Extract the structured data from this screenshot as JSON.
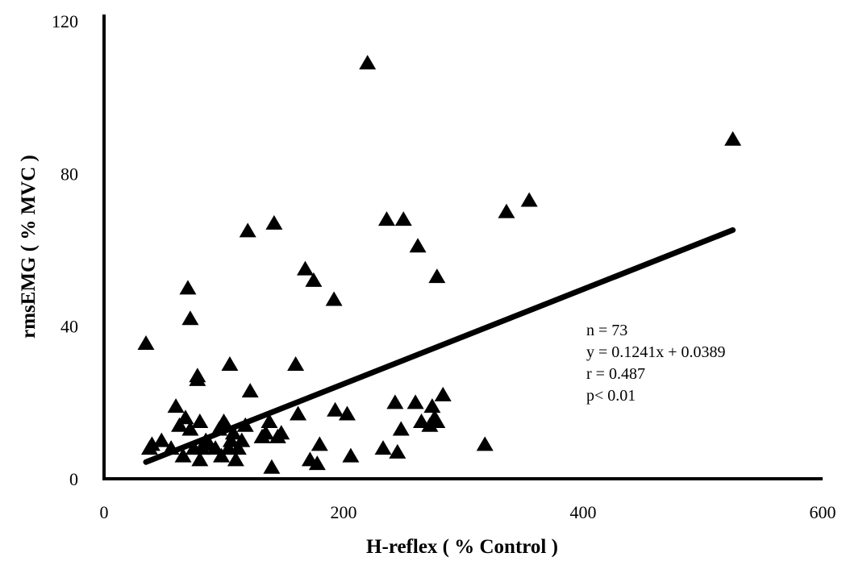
{
  "chart_data": {
    "type": "scatter",
    "xlabel": "H-reflex ( % Control )",
    "ylabel": "rmsEMG ( % MVC )",
    "xlim": [
      0,
      600
    ],
    "ylim": [
      0,
      120
    ],
    "x_ticks": [
      "0",
      "200",
      "400",
      "600"
    ],
    "y_ticks": [
      "0",
      "40",
      "80",
      "120"
    ],
    "grid": false,
    "legend": false,
    "marker": "triangle",
    "color": "#000000",
    "series": [
      {
        "points": [
          [
            35,
            35.5
          ],
          [
            38,
            8
          ],
          [
            48,
            10
          ],
          [
            56,
            8
          ],
          [
            60,
            19
          ],
          [
            63,
            14
          ],
          [
            66,
            6
          ],
          [
            68,
            16
          ],
          [
            70,
            50
          ],
          [
            72,
            42
          ],
          [
            72,
            13
          ],
          [
            75,
            8
          ],
          [
            78,
            26
          ],
          [
            78,
            27
          ],
          [
            80,
            5
          ],
          [
            80,
            15
          ],
          [
            82,
            8
          ],
          [
            88,
            9
          ],
          [
            93,
            8
          ],
          [
            96,
            13
          ],
          [
            98,
            6
          ],
          [
            100,
            15
          ],
          [
            102,
            14
          ],
          [
            104,
            8
          ],
          [
            105,
            30
          ],
          [
            106,
            10
          ],
          [
            108,
            12
          ],
          [
            110,
            5
          ],
          [
            112,
            8
          ],
          [
            115,
            10
          ],
          [
            118,
            14
          ],
          [
            120,
            65
          ],
          [
            122,
            23
          ],
          [
            132,
            11
          ],
          [
            135,
            12
          ],
          [
            138,
            15
          ],
          [
            140,
            3
          ],
          [
            142,
            67
          ],
          [
            145,
            11
          ],
          [
            148,
            12
          ],
          [
            160,
            30
          ],
          [
            162,
            17
          ],
          [
            168,
            55
          ],
          [
            172,
            5
          ],
          [
            175,
            52
          ],
          [
            178,
            4
          ],
          [
            180,
            9
          ],
          [
            192,
            47
          ],
          [
            193,
            18
          ],
          [
            203,
            17
          ],
          [
            206,
            6
          ],
          [
            220,
            109
          ],
          [
            233,
            8
          ],
          [
            236,
            68
          ],
          [
            243,
            20
          ],
          [
            245,
            7
          ],
          [
            248,
            13
          ],
          [
            250,
            68
          ],
          [
            260,
            20
          ],
          [
            262,
            61
          ],
          [
            265,
            15
          ],
          [
            272,
            14
          ],
          [
            274,
            19
          ],
          [
            276,
            16
          ],
          [
            278,
            15
          ],
          [
            278,
            53
          ],
          [
            283,
            22
          ],
          [
            318,
            9
          ],
          [
            336,
            70
          ],
          [
            355,
            73
          ],
          [
            525,
            89
          ],
          [
            40,
            9
          ],
          [
            85,
            10
          ]
        ]
      }
    ],
    "trendline": {
      "slope": 0.1241,
      "intercept": 0.0389,
      "x_start": 35,
      "x_end": 525
    },
    "annotations": [
      "n = 73",
      "y = 0.1241x + 0.0389",
      "r = 0.487",
      "p< 0.01"
    ]
  }
}
